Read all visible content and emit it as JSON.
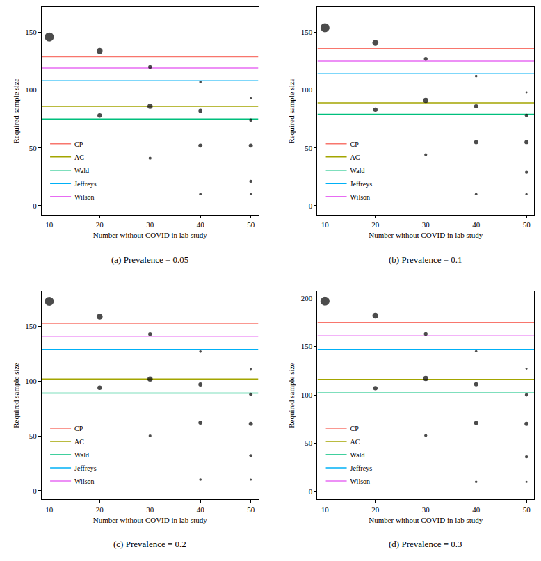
{
  "chart_data": [
    {
      "type": "scatter",
      "title": "(a) Prevalence = 0.05",
      "x_label": "Number without COVID in lab study",
      "y_label": "Required sample size",
      "xlim": [
        8.5,
        51.5
      ],
      "xticks": [
        10,
        20,
        30,
        40,
        50
      ],
      "ylim": [
        -8,
        172
      ],
      "yticks": [
        0,
        50,
        100,
        150
      ],
      "grid": false,
      "legend": "bottom-left",
      "points": {
        "color": "#000000",
        "marker": "circle",
        "x": [
          10,
          20,
          20,
          30,
          30,
          30,
          40,
          40,
          40,
          40,
          50,
          50,
          50,
          50,
          50
        ],
        "y": [
          146,
          134,
          78,
          120,
          86,
          41,
          107,
          82,
          52,
          10,
          93,
          74,
          52,
          21,
          10
        ],
        "sizes": [
          1,
          0.6,
          0.4,
          0.3,
          0.5,
          0.2,
          0.15,
          0.35,
          0.35,
          0.15,
          0.08,
          0.25,
          0.35,
          0.22,
          0.1
        ]
      },
      "series": [
        {
          "name": "CP",
          "color": "#F8766D",
          "line_style": "solid",
          "value": 129
        },
        {
          "name": "AC",
          "color": "#A3A500",
          "line_style": "solid",
          "value": 86
        },
        {
          "name": "Wald",
          "color": "#00BF7D",
          "line_style": "solid",
          "value": 75
        },
        {
          "name": "Jeffreys",
          "color": "#00B0F6",
          "line_style": "solid",
          "value": 108
        },
        {
          "name": "Wilson",
          "color": "#E76BF3",
          "line_style": "solid",
          "value": 119
        }
      ]
    },
    {
      "type": "scatter",
      "title": "(b) Prevalence = 0.1",
      "x_label": "Number without COVID in lab study",
      "y_label": "Required sample size",
      "xlim": [
        8.5,
        51.5
      ],
      "xticks": [
        10,
        20,
        30,
        40,
        50
      ],
      "ylim": [
        -8,
        172
      ],
      "yticks": [
        0,
        50,
        100,
        150
      ],
      "grid": false,
      "legend": "bottom-left",
      "points": {
        "color": "#000000",
        "marker": "circle",
        "x": [
          10,
          20,
          20,
          30,
          30,
          30,
          40,
          40,
          40,
          40,
          50,
          50,
          50,
          50,
          50
        ],
        "y": [
          154,
          141,
          83,
          127,
          91,
          44,
          112,
          86,
          55,
          10,
          98,
          78,
          55,
          29,
          10
        ],
        "sizes": [
          1,
          0.6,
          0.4,
          0.3,
          0.5,
          0.2,
          0.15,
          0.35,
          0.35,
          0.15,
          0.08,
          0.25,
          0.35,
          0.22,
          0.1
        ]
      },
      "series": [
        {
          "name": "CP",
          "color": "#F8766D",
          "line_style": "solid",
          "value": 136
        },
        {
          "name": "AC",
          "color": "#A3A500",
          "line_style": "solid",
          "value": 89
        },
        {
          "name": "Wald",
          "color": "#00BF7D",
          "line_style": "solid",
          "value": 79
        },
        {
          "name": "Jeffreys",
          "color": "#00B0F6",
          "line_style": "solid",
          "value": 114
        },
        {
          "name": "Wilson",
          "color": "#E76BF3",
          "line_style": "solid",
          "value": 125
        }
      ]
    },
    {
      "type": "scatter",
      "title": "(c) Prevalence = 0.2",
      "x_label": "Number without COVID in lab study",
      "y_label": "Required sample size",
      "xlim": [
        8.5,
        51.5
      ],
      "xticks": [
        10,
        20,
        30,
        40,
        50
      ],
      "ylim": [
        -8,
        182
      ],
      "yticks": [
        0,
        50,
        100,
        150
      ],
      "grid": false,
      "legend": "bottom-left",
      "points": {
        "color": "#000000",
        "marker": "circle",
        "x": [
          10,
          20,
          20,
          30,
          30,
          30,
          40,
          40,
          40,
          40,
          50,
          50,
          50,
          50,
          50
        ],
        "y": [
          173,
          159,
          94,
          143,
          102,
          50,
          127,
          97,
          62,
          10,
          111,
          88,
          61,
          32,
          10
        ],
        "sizes": [
          1,
          0.6,
          0.4,
          0.3,
          0.5,
          0.2,
          0.15,
          0.35,
          0.35,
          0.15,
          0.08,
          0.25,
          0.35,
          0.22,
          0.1
        ]
      },
      "series": [
        {
          "name": "CP",
          "color": "#F8766D",
          "line_style": "solid",
          "value": 153
        },
        {
          "name": "AC",
          "color": "#A3A500",
          "line_style": "solid",
          "value": 102
        },
        {
          "name": "Wald",
          "color": "#00BF7D",
          "line_style": "solid",
          "value": 89
        },
        {
          "name": "Jeffreys",
          "color": "#00B0F6",
          "line_style": "solid",
          "value": 129
        },
        {
          "name": "Wilson",
          "color": "#E76BF3",
          "line_style": "solid",
          "value": 141
        }
      ]
    },
    {
      "type": "scatter",
      "title": "(d) Prevalence = 0.3",
      "x_label": "Number without COVID in lab study",
      "y_label": "Required sample size",
      "xlim": [
        8.5,
        51.5
      ],
      "xticks": [
        10,
        20,
        30,
        40,
        50
      ],
      "ylim": [
        -8,
        207
      ],
      "yticks": [
        0,
        50,
        100,
        150,
        200
      ],
      "grid": false,
      "legend": "bottom-left",
      "points": {
        "color": "#000000",
        "marker": "circle",
        "x": [
          10,
          20,
          20,
          30,
          30,
          30,
          40,
          40,
          40,
          40,
          50,
          50,
          50,
          50,
          50
        ],
        "y": [
          197,
          182,
          107,
          163,
          117,
          58,
          145,
          111,
          71,
          10,
          127,
          100,
          70,
          36,
          10
        ],
        "sizes": [
          1,
          0.6,
          0.4,
          0.3,
          0.5,
          0.2,
          0.15,
          0.35,
          0.35,
          0.15,
          0.08,
          0.25,
          0.35,
          0.22,
          0.1
        ]
      },
      "series": [
        {
          "name": "CP",
          "color": "#F8766D",
          "line_style": "solid",
          "value": 175
        },
        {
          "name": "AC",
          "color": "#A3A500",
          "line_style": "solid",
          "value": 116
        },
        {
          "name": "Wald",
          "color": "#00BF7D",
          "line_style": "solid",
          "value": 102
        },
        {
          "name": "Jeffreys",
          "color": "#00B0F6",
          "line_style": "solid",
          "value": 147
        },
        {
          "name": "Wilson",
          "color": "#E76BF3",
          "line_style": "solid",
          "value": 161
        }
      ]
    }
  ]
}
